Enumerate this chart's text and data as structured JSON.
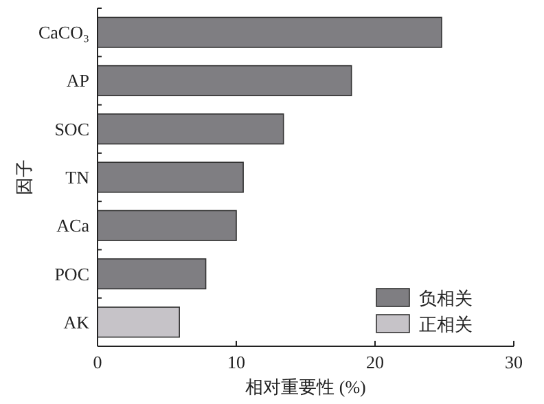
{
  "chart_data": {
    "type": "bar",
    "orientation": "horizontal",
    "xlabel": "相对重要性 (%)",
    "ylabel": "因子",
    "categories": [
      "CaCO₃",
      "AP",
      "SOC",
      "TN",
      "ACa",
      "POC",
      "AK"
    ],
    "series": [
      {
        "name": "负相关",
        "color": "#7f7e82",
        "values": [
          24.8,
          18.3,
          13.4,
          10.5,
          10.0,
          7.8,
          null
        ]
      },
      {
        "name": "正相关",
        "color": "#c6c3c8",
        "values": [
          null,
          null,
          null,
          null,
          null,
          null,
          5.9
        ]
      }
    ],
    "xlim": [
      0,
      30
    ],
    "xticks": [
      0,
      10,
      20,
      30
    ],
    "grid": false,
    "legend": "bottom right"
  }
}
